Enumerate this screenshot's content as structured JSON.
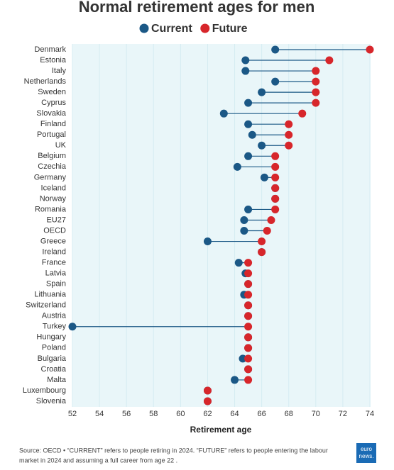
{
  "chart_data": {
    "type": "dumbbell",
    "title": "Normal retirement ages for men",
    "categories": [
      "Denmark",
      "Estonia",
      "Italy",
      "Netherlands",
      "Sweden",
      "Cyprus",
      "Slovakia",
      "Finland",
      "Portugal",
      "UK",
      "Belgium",
      "Czechia",
      "Germany",
      "Iceland",
      "Norway",
      "Romania",
      "EU27",
      "OECD",
      "Greece",
      "Ireland",
      "France",
      "Latvia",
      "Spain",
      "Lithuania",
      "Switzerland",
      "Austria",
      "Turkey",
      "Hungary",
      "Poland",
      "Bulgaria",
      "Croatia",
      "Malta",
      "Luxembourg",
      "Slovenia"
    ],
    "series": [
      {
        "name": "Current",
        "color": "#1b5886",
        "values": [
          67,
          64.8,
          64.8,
          67,
          66,
          65,
          63.2,
          65,
          65.3,
          66,
          65,
          64.2,
          66.2,
          67,
          67,
          65,
          64.7,
          64.7,
          62,
          66,
          64.3,
          64.8,
          65,
          64.7,
          65,
          65,
          52,
          65,
          65,
          64.6,
          65,
          64,
          62,
          62
        ]
      },
      {
        "name": "Future",
        "color": "#d7262b",
        "values": [
          74,
          71,
          70,
          70,
          70,
          70,
          69,
          68,
          68,
          68,
          67,
          67,
          67,
          67,
          67,
          67,
          66.7,
          66.4,
          66,
          66,
          65,
          65,
          65,
          65,
          65,
          65,
          65,
          65,
          65,
          65,
          65,
          65,
          62,
          62
        ]
      }
    ],
    "xlim": [
      52,
      74
    ],
    "xticks": [
      52,
      54,
      56,
      58,
      60,
      62,
      64,
      66,
      68,
      70,
      72,
      74
    ],
    "xlabel": "Retirement age",
    "grid": true,
    "source": [
      "Source: OECD • “CURRENT” refers to people retiring in 2024. “FUTURE” refers to people entering the labour",
      "market in 2024 and assuming a full career from age 22 ."
    ],
    "logo": [
      "euro",
      "news."
    ]
  }
}
